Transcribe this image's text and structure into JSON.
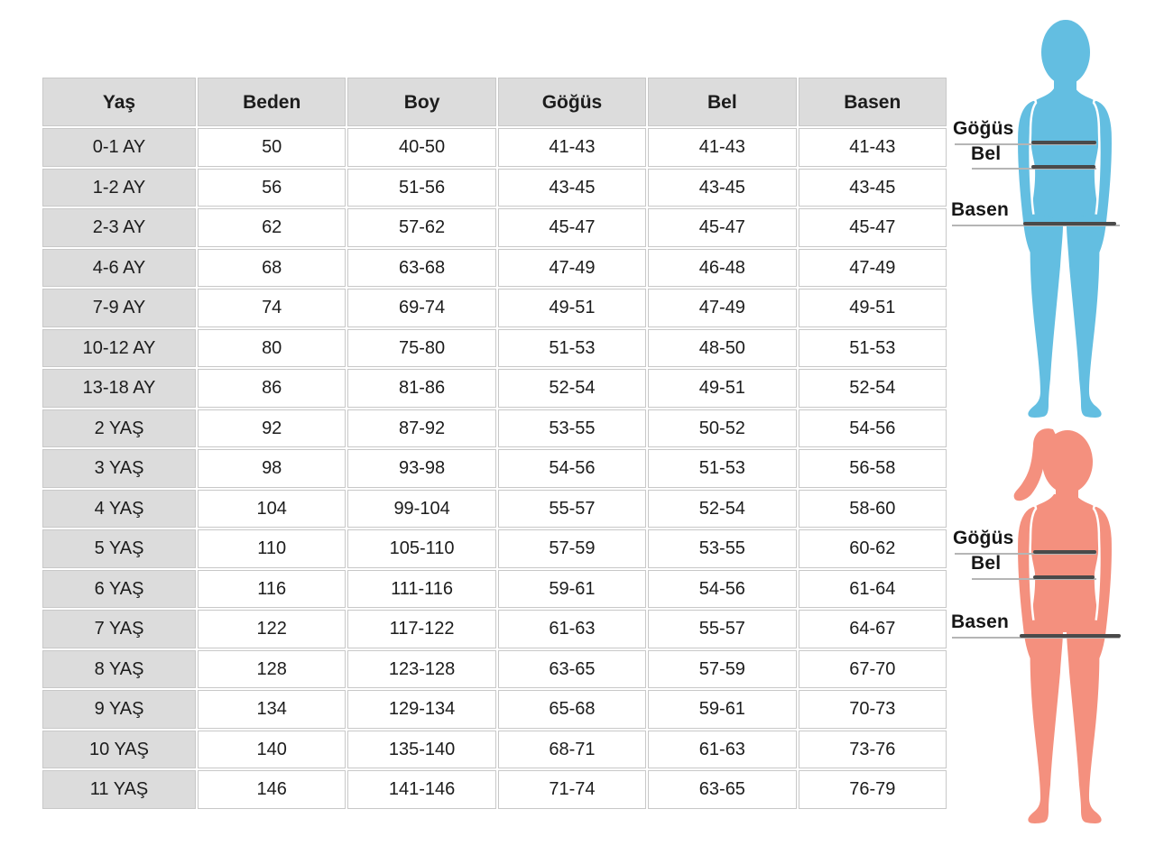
{
  "chart_data": {
    "type": "table",
    "columns": [
      "Yaş",
      "Beden",
      "Boy",
      "Göğüs",
      "Bel",
      "Basen"
    ],
    "rows": [
      [
        "0-1 AY",
        "50",
        "40-50",
        "41-43",
        "41-43",
        "41-43"
      ],
      [
        "1-2 AY",
        "56",
        "51-56",
        "43-45",
        "43-45",
        "43-45"
      ],
      [
        "2-3 AY",
        "62",
        "57-62",
        "45-47",
        "45-47",
        "45-47"
      ],
      [
        "4-6 AY",
        "68",
        "63-68",
        "47-49",
        "46-48",
        "47-49"
      ],
      [
        "7-9 AY",
        "74",
        "69-74",
        "49-51",
        "47-49",
        "49-51"
      ],
      [
        "10-12 AY",
        "80",
        "75-80",
        "51-53",
        "48-50",
        "51-53"
      ],
      [
        "13-18 AY",
        "86",
        "81-86",
        "52-54",
        "49-51",
        "52-54"
      ],
      [
        "2 YAŞ",
        "92",
        "87-92",
        "53-55",
        "50-52",
        "54-56"
      ],
      [
        "3 YAŞ",
        "98",
        "93-98",
        "54-56",
        "51-53",
        "56-58"
      ],
      [
        "4 YAŞ",
        "104",
        "99-104",
        "55-57",
        "52-54",
        "58-60"
      ],
      [
        "5 YAŞ",
        "110",
        "105-110",
        "57-59",
        "53-55",
        "60-62"
      ],
      [
        "6 YAŞ",
        "116",
        "111-116",
        "59-61",
        "54-56",
        "61-64"
      ],
      [
        "7 YAŞ",
        "122",
        "117-122",
        "61-63",
        "55-57",
        "64-67"
      ],
      [
        "8 YAŞ",
        "128",
        "123-128",
        "63-65",
        "57-59",
        "67-70"
      ],
      [
        "9 YAŞ",
        "134",
        "129-134",
        "65-68",
        "59-61",
        "70-73"
      ],
      [
        "10 YAŞ",
        "140",
        "135-140",
        "68-71",
        "61-63",
        "73-76"
      ],
      [
        "11 YAŞ",
        "146",
        "141-146",
        "71-74",
        "63-65",
        "76-79"
      ]
    ]
  },
  "figures": {
    "boy": {
      "chest_label": "Göğüs",
      "waist_label": "Bel",
      "hip_label": "Basen"
    },
    "girl": {
      "chest_label": "Göğüs",
      "waist_label": "Bel",
      "hip_label": "Basen"
    }
  },
  "colors": {
    "boy_color": "#63bee1",
    "girl_color": "#f4907e",
    "header_bg": "#dcdcdc",
    "cell_border": "#c8c8c8",
    "measure_thick": "#4a4a4a",
    "measure_thin": "#b5b5b5",
    "text": "#1c1c1c"
  }
}
